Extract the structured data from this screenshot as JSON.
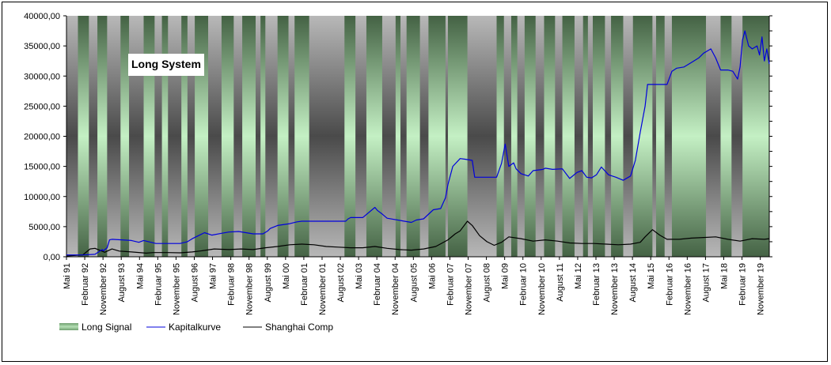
{
  "chart_data": {
    "type": "line",
    "title": "Long System",
    "xlabel": "",
    "ylabel": "",
    "ylim": [
      0,
      40000
    ],
    "yticks": [
      "0,00",
      "5000,00",
      "10000,00",
      "15000,00",
      "20000,00",
      "25000,00",
      "30000,00",
      "35000,00",
      "40000,00"
    ],
    "x_tick_labels": [
      "Mai 91",
      "Februar 92",
      "November 92",
      "August 93",
      "Mai 94",
      "Februar 95",
      "November 95",
      "August 96",
      "Mai 97",
      "Februar 98",
      "November 98",
      "August 99",
      "Mai 00",
      "Februar 01",
      "November 01",
      "August 02",
      "Mai 03",
      "Februar 04",
      "November 04",
      "August 05",
      "Mai 06",
      "Februar 07",
      "November 07",
      "August 08",
      "Mai 09",
      "Februar 10",
      "November 10",
      "August 11",
      "Mai 12",
      "Februar 13",
      "November 13",
      "August 14",
      "Mai 15",
      "Februar 16",
      "November 16",
      "August 17",
      "Mai 18",
      "Februar 19",
      "November 19"
    ],
    "x_range": [
      1991.33,
      2020.2
    ],
    "legend_position": "bottom-left",
    "colors": {
      "long_signal": "#8fbc8f",
      "kapitalkurve": "#0000dd",
      "shanghai": "#000000",
      "background": "#c0c0c0"
    },
    "long_signal_periods": [
      [
        1991.8,
        1992.25
      ],
      [
        1992.6,
        1993.0
      ],
      [
        1993.55,
        1993.9
      ],
      [
        1994.5,
        1994.95
      ],
      [
        1995.25,
        1995.5
      ],
      [
        1996.05,
        1996.3
      ],
      [
        1996.6,
        1997.15
      ],
      [
        1997.7,
        1998.2
      ],
      [
        1998.55,
        1999.1
      ],
      [
        1999.3,
        1999.5
      ],
      [
        2000.0,
        2000.45
      ],
      [
        2000.7,
        2001.3
      ],
      [
        2002.75,
        2003.2
      ],
      [
        2003.65,
        2004.3
      ],
      [
        2004.85,
        2005.05
      ],
      [
        2005.3,
        2005.85
      ],
      [
        2006.2,
        2006.9
      ],
      [
        2007.0,
        2007.8
      ],
      [
        2009.0,
        2009.3
      ],
      [
        2009.6,
        2009.85
      ],
      [
        2010.15,
        2010.6
      ],
      [
        2010.95,
        2011.4
      ],
      [
        2011.7,
        2012.2
      ],
      [
        2012.55,
        2012.75
      ],
      [
        2012.95,
        2013.45
      ],
      [
        2013.7,
        2014.2
      ],
      [
        2014.6,
        2015.4
      ],
      [
        2015.55,
        2015.9
      ],
      [
        2016.2,
        2017.6
      ],
      [
        2018.2,
        2018.65
      ],
      [
        2019.1,
        2020.2
      ]
    ],
    "series": [
      {
        "name": "Kapitalkurve",
        "x": [
          1991.33,
          1992.0,
          1992.5,
          1992.8,
          1992.85,
          1993.0,
          1993.1,
          1993.2,
          1994.0,
          1994.3,
          1994.5,
          1994.7,
          1995.0,
          1996.0,
          1996.3,
          1996.5,
          1996.8,
          1997.0,
          1997.3,
          1997.7,
          1998.0,
          1998.4,
          1998.7,
          1999.0,
          1999.4,
          1999.6,
          1999.7,
          2000.0,
          2000.5,
          2000.8,
          2001.0,
          2002.8,
          2002.9,
          2003.0,
          2003.5,
          2004.0,
          2004.1,
          2004.3,
          2004.5,
          2005.5,
          2005.7,
          2006.0,
          2006.4,
          2006.7,
          2006.9,
          2007.0,
          2007.2,
          2007.5,
          2007.7,
          2008.0,
          2008.1,
          2009.0,
          2009.2,
          2009.35,
          2009.5,
          2009.7,
          2009.8,
          2010.0,
          2010.3,
          2010.5,
          2010.9,
          2011.0,
          2011.3,
          2011.7,
          2012.0,
          2012.3,
          2012.5,
          2012.7,
          2012.9,
          2013.1,
          2013.3,
          2013.6,
          2013.9,
          2014.2,
          2014.5,
          2014.7,
          2014.9,
          2015.1,
          2015.2,
          2015.4,
          2016.0,
          2016.2,
          2016.4,
          2016.7,
          2016.9,
          2017.1,
          2017.3,
          2017.5,
          2017.8,
          2018.0,
          2018.2,
          2018.5,
          2018.7,
          2018.9,
          2019.0,
          2019.1,
          2019.2,
          2019.35,
          2019.5,
          2019.7,
          2019.8,
          2019.9,
          2020.0,
          2020.1,
          2020.2
        ],
        "values": [
          300,
          300,
          400,
          1200,
          1000,
          1500,
          2800,
          2900,
          2700,
          2400,
          2700,
          2500,
          2200,
          2200,
          2500,
          3000,
          3600,
          4000,
          3600,
          3900,
          4100,
          4200,
          4000,
          3800,
          3800,
          4300,
          4700,
          5200,
          5500,
          5800,
          5900,
          5900,
          6300,
          6500,
          6500,
          8200,
          7700,
          7100,
          6400,
          5700,
          6100,
          6300,
          7800,
          8000,
          9800,
          12000,
          15000,
          16300,
          16200,
          16000,
          13200,
          13200,
          15500,
          18700,
          15000,
          15600,
          14600,
          13800,
          13400,
          14300,
          14500,
          14700,
          14500,
          14600,
          13000,
          14000,
          14300,
          13200,
          13100,
          13600,
          14900,
          13600,
          13200,
          12700,
          13400,
          16000,
          20700,
          25000,
          28600,
          28600,
          28600,
          30800,
          31300,
          31500,
          32000,
          32500,
          33000,
          33800,
          34500,
          33000,
          31000,
          31000,
          30800,
          29500,
          31500,
          36000,
          37500,
          35000,
          34500,
          35000,
          33500,
          36500,
          32500,
          34500,
          32000
        ]
      },
      {
        "name": "Shanghai Comp",
        "x": [
          1991.33,
          1992.0,
          1992.3,
          1992.5,
          1992.9,
          1993.2,
          1993.5,
          1994.0,
          1994.6,
          1994.9,
          1995.5,
          1996.0,
          1996.5,
          1996.9,
          1997.4,
          1998.0,
          1998.5,
          1999.0,
          1999.5,
          2000.0,
          2000.5,
          2001.0,
          2001.5,
          2002.0,
          2002.5,
          2003.0,
          2003.5,
          2004.0,
          2004.5,
          2005.0,
          2005.5,
          2006.0,
          2006.5,
          2007.0,
          2007.3,
          2007.5,
          2007.8,
          2008.0,
          2008.3,
          2008.6,
          2008.9,
          2009.2,
          2009.5,
          2010.0,
          2010.5,
          2011.0,
          2011.5,
          2012.0,
          2012.5,
          2013.0,
          2013.5,
          2014.0,
          2014.5,
          2014.9,
          2015.1,
          2015.4,
          2015.7,
          2016.0,
          2016.5,
          2017.0,
          2017.5,
          2018.0,
          2018.5,
          2019.0,
          2019.5,
          2020.0,
          2020.2
        ],
        "values": [
          130,
          300,
          1300,
          1400,
          750,
          1300,
          950,
          800,
          600,
          700,
          700,
          650,
          800,
          1000,
          1300,
          1200,
          1300,
          1200,
          1500,
          1700,
          2000,
          2100,
          2000,
          1700,
          1600,
          1500,
          1500,
          1700,
          1400,
          1200,
          1100,
          1300,
          1700,
          2800,
          3800,
          4300,
          5900,
          5200,
          3500,
          2500,
          1900,
          2400,
          3300,
          3000,
          2600,
          2800,
          2600,
          2300,
          2200,
          2200,
          2100,
          2000,
          2100,
          2400,
          3300,
          4500,
          3600,
          2900,
          2900,
          3100,
          3200,
          3300,
          2900,
          2600,
          3000,
          2900,
          3000
        ]
      }
    ],
    "legend": [
      {
        "label": "Long Signal",
        "kind": "area"
      },
      {
        "label": "Kapitalkurve",
        "kind": "line"
      },
      {
        "label": "Shanghai Comp",
        "kind": "line"
      }
    ]
  }
}
